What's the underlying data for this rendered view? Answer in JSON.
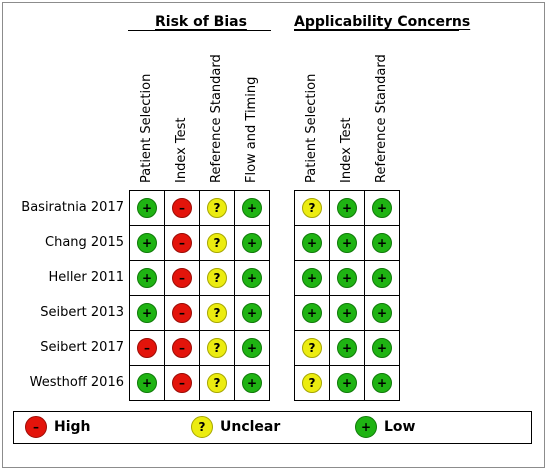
{
  "chart_data": {
    "type": "table",
    "groups": [
      {
        "title": "Risk of Bias",
        "columns": [
          "Patient Selection",
          "Index Test",
          "Reference Standard",
          "Flow and Timing"
        ]
      },
      {
        "title": "Applicability Concerns",
        "columns": [
          "Patient Selection",
          "Index Test",
          "Reference Standard"
        ]
      }
    ],
    "rows": [
      {
        "study": "Basiratnia 2017",
        "risk_of_bias": [
          "low",
          "high",
          "unclear",
          "low"
        ],
        "applicability": [
          "unclear",
          "low",
          "low"
        ]
      },
      {
        "study": "Chang 2015",
        "risk_of_bias": [
          "low",
          "high",
          "unclear",
          "low"
        ],
        "applicability": [
          "low",
          "low",
          "low"
        ]
      },
      {
        "study": "Heller 2011",
        "risk_of_bias": [
          "low",
          "high",
          "unclear",
          "low"
        ],
        "applicability": [
          "low",
          "low",
          "low"
        ]
      },
      {
        "study": "Seibert  2013",
        "risk_of_bias": [
          "low",
          "high",
          "unclear",
          "low"
        ],
        "applicability": [
          "low",
          "low",
          "low"
        ]
      },
      {
        "study": "Seibert 2017",
        "risk_of_bias": [
          "high",
          "high",
          "unclear",
          "low"
        ],
        "applicability": [
          "unclear",
          "low",
          "low"
        ]
      },
      {
        "study": "Westhoff 2016",
        "risk_of_bias": [
          "low",
          "high",
          "unclear",
          "low"
        ],
        "applicability": [
          "unclear",
          "low",
          "low"
        ]
      }
    ],
    "symbols": {
      "low": "+",
      "high": "–",
      "unclear": "?"
    },
    "legend": [
      {
        "level": "high",
        "label": "High"
      },
      {
        "level": "unclear",
        "label": "Unclear"
      },
      {
        "level": "low",
        "label": "Low"
      }
    ],
    "colors": {
      "low": "#1fb313",
      "high": "#e3140b",
      "unclear": "#ecec10"
    }
  }
}
